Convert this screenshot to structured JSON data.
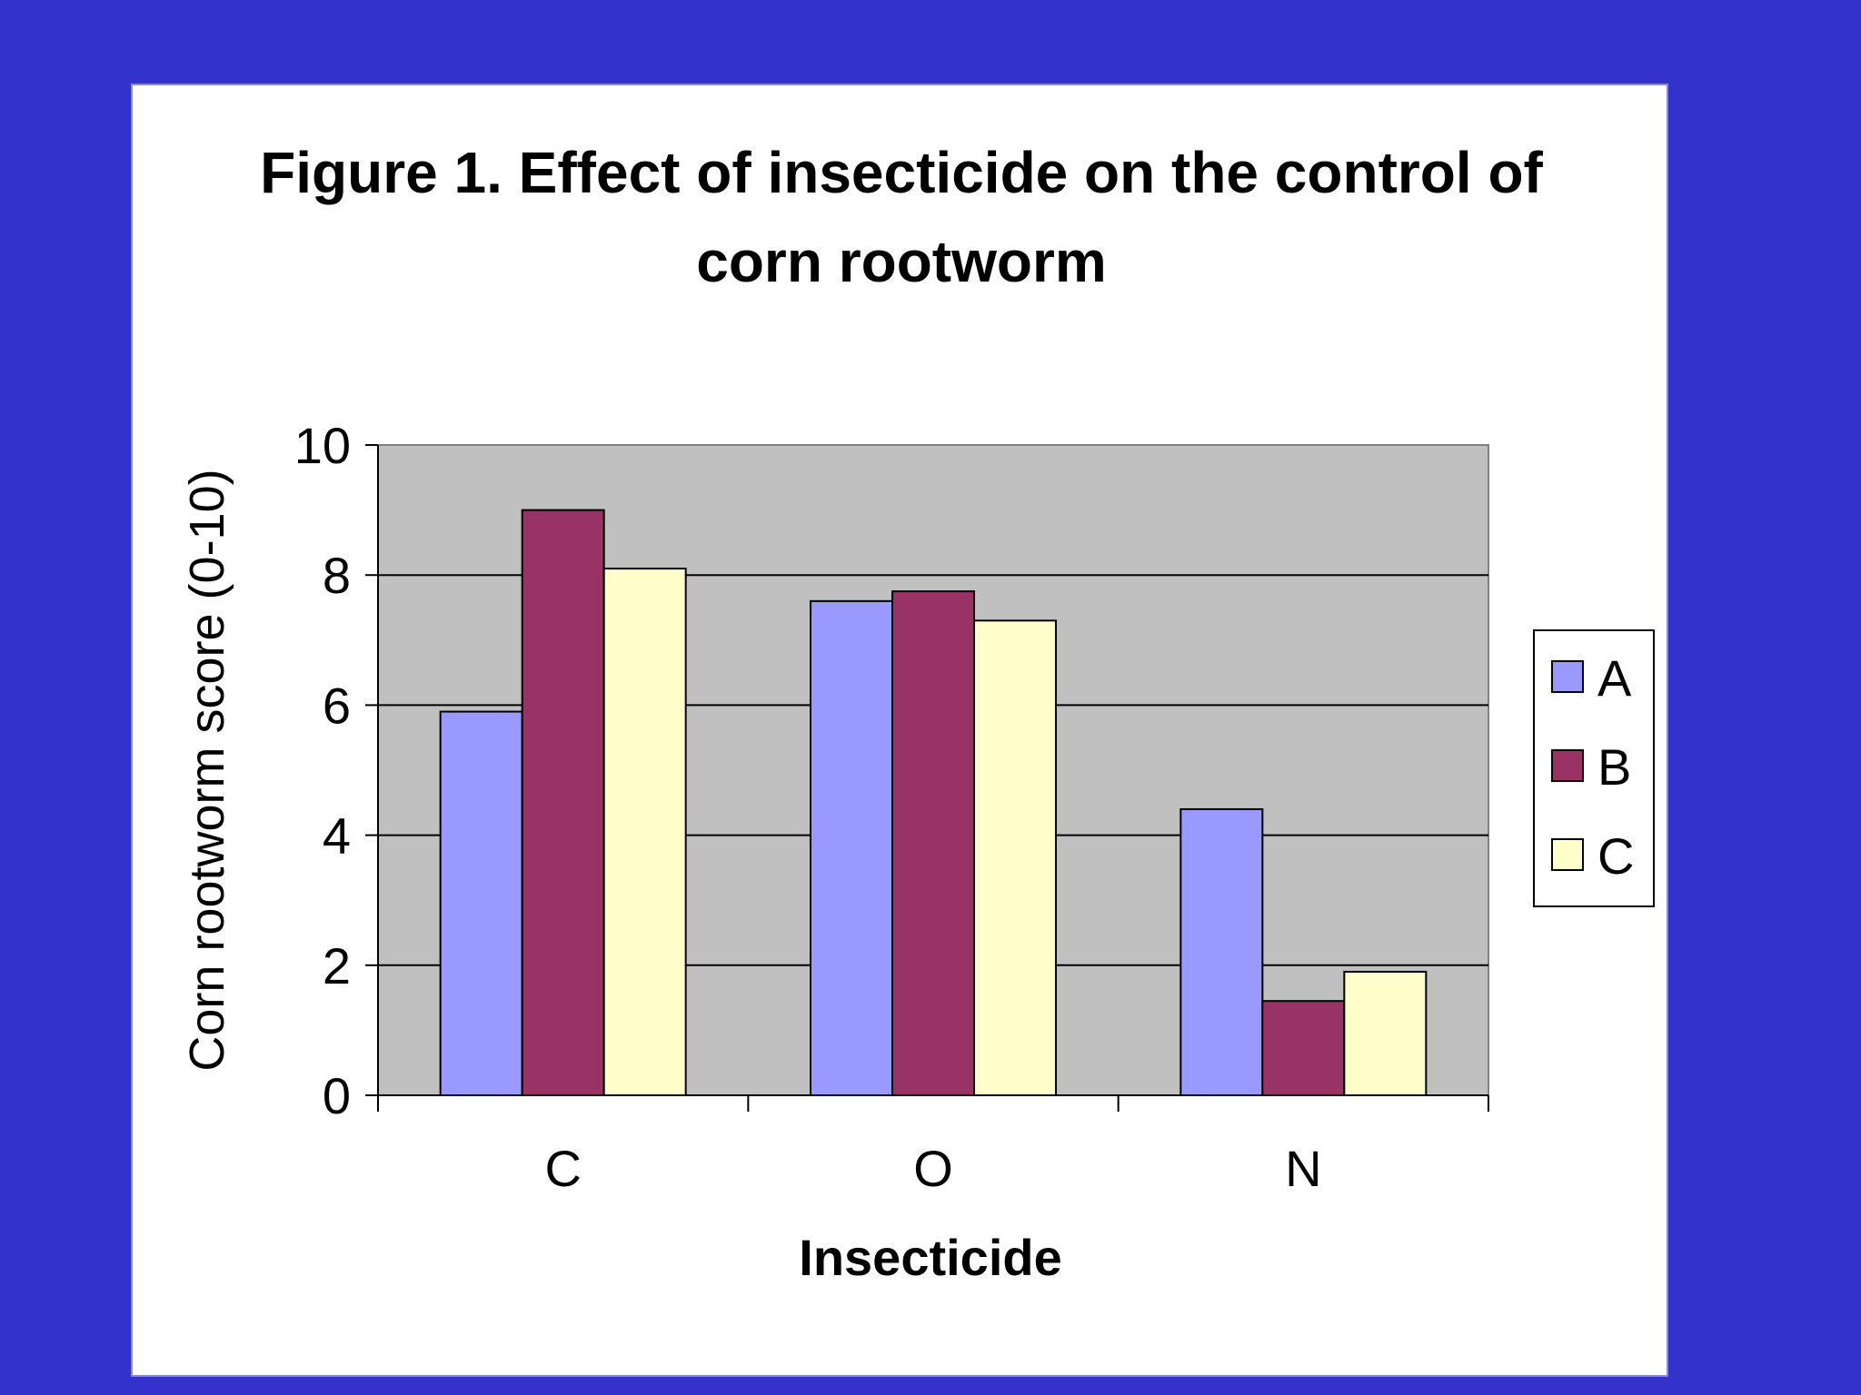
{
  "colors": {
    "background": "#3333cc",
    "card": "#ffffff",
    "plot_area": "#c0c0c0",
    "gridline": "#000000"
  },
  "chart_data": {
    "type": "bar",
    "title_lines": [
      "Figure 1. Effect of insecticide on the control of",
      "corn rootworm"
    ],
    "xlabel": "Insecticide",
    "ylabel": "Corn rootworm score (0-10)",
    "categories": [
      "C",
      "O",
      "N"
    ],
    "series": [
      {
        "name": "A",
        "color": "#9999ff",
        "values": [
          5.9,
          7.6,
          4.4
        ]
      },
      {
        "name": "B",
        "color": "#993366",
        "values": [
          9.0,
          7.75,
          1.45
        ]
      },
      {
        "name": "C",
        "color": "#ffffcc",
        "values": [
          8.1,
          7.3,
          1.9
        ]
      }
    ],
    "ylim": [
      0,
      10
    ],
    "yticks": [
      0,
      2,
      4,
      6,
      8,
      10
    ],
    "grid": true,
    "legend": "right"
  }
}
